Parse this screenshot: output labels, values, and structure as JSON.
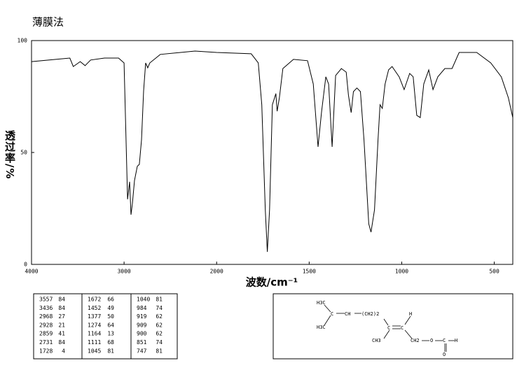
{
  "chart_data": {
    "type": "line",
    "title": "薄膜法",
    "x_label": "波数/cm⁻¹",
    "y_label": "透过率/%",
    "x": [
      4000,
      3737,
      3586,
      3549,
      3474,
      3421,
      3361,
      3211,
      3060,
      3000,
      2962,
      2940,
      2925,
      2910,
      2887,
      2857,
      2835,
      2812,
      2789,
      2767,
      2744,
      2722,
      2609,
      2233,
      2000,
      1813,
      1775,
      1756,
      1737,
      1726,
      1714,
      1699,
      1680,
      1673,
      1661,
      1642,
      1585,
      1509,
      1478,
      1452,
      1433,
      1410,
      1395,
      1376,
      1357,
      1326,
      1300,
      1288,
      1273,
      1261,
      1242,
      1223,
      1204,
      1178,
      1166,
      1147,
      1128,
      1117,
      1105,
      1090,
      1071,
      1052,
      1014,
      987,
      957,
      938,
      919,
      900,
      881,
      854,
      831,
      805,
      767,
      728,
      690,
      595,
      519,
      462,
      424,
      400
    ],
    "values": [
      90.6,
      91.6,
      92.2,
      88.4,
      90.6,
      88.8,
      91.3,
      92.2,
      92.2,
      90,
      29.1,
      36.9,
      22.2,
      27.2,
      37.5,
      43.8,
      44.7,
      55.6,
      77.5,
      90,
      87.8,
      90,
      93.8,
      95.3,
      94.7,
      94.1,
      90,
      71.3,
      24.4,
      5.6,
      24.4,
      71.3,
      76.3,
      68.4,
      74.4,
      87.5,
      91.6,
      91,
      80.6,
      52.5,
      68.1,
      83.8,
      80.6,
      52.5,
      84.4,
      87.5,
      85.9,
      75.6,
      67.8,
      77.2,
      78.8,
      77.2,
      55.6,
      18.1,
      14.4,
      24.4,
      55.6,
      71.3,
      69.7,
      80.6,
      86.9,
      88.4,
      83.8,
      78.1,
      85.3,
      83.8,
      66.6,
      65.6,
      80.6,
      86.9,
      78.1,
      83.8,
      87.5,
      87.5,
      94.7,
      94.7,
      90,
      83.8,
      74.4,
      65.6
    ],
    "color": "#000000",
    "xlim": [
      4000,
      400
    ],
    "xbreak": 2000,
    "xticks": [
      4000,
      3000,
      2000,
      1500,
      1000,
      500
    ],
    "ylim": [
      0,
      100
    ],
    "yticks": [
      0,
      50,
      100
    ]
  },
  "peak_table": {
    "rows": [
      [
        [
          3557,
          84
        ],
        [
          1672,
          66
        ],
        [
          1040,
          81
        ]
      ],
      [
        [
          3436,
          84
        ],
        [
          1452,
          49
        ],
        [
          984,
          74
        ]
      ],
      [
        [
          2968,
          27
        ],
        [
          1377,
          50
        ],
        [
          919,
          62
        ]
      ],
      [
        [
          2928,
          21
        ],
        [
          1274,
          64
        ],
        [
          909,
          62
        ]
      ],
      [
        [
          2859,
          41
        ],
        [
          1164,
          13
        ],
        [
          900,
          62
        ]
      ],
      [
        [
          2731,
          84
        ],
        [
          1111,
          68
        ],
        [
          851,
          74
        ]
      ],
      [
        [
          1728,
          4
        ],
        [
          1045,
          81
        ],
        [
          747,
          81
        ]
      ]
    ]
  },
  "structure": {
    "labels": [
      "H3C",
      "C",
      "CH",
      "(CH2)2",
      "H3C",
      "C",
      "C",
      "H",
      "CH3",
      "CH2",
      "O",
      "C",
      "H",
      "O"
    ]
  }
}
